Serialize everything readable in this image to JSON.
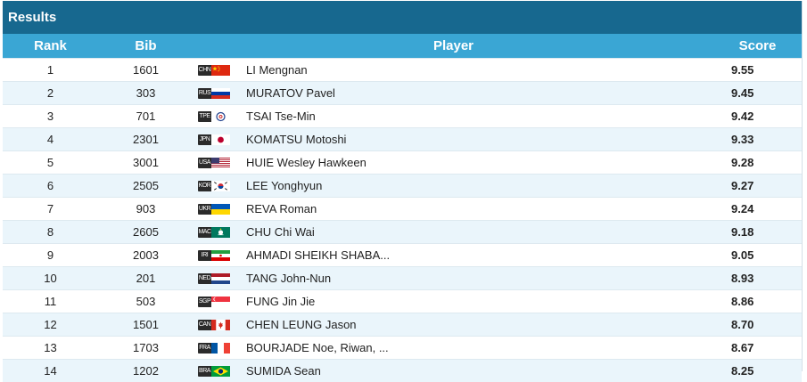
{
  "panel": {
    "title": "Results"
  },
  "columns": {
    "rank": "Rank",
    "bib": "Bib",
    "player": "Player",
    "score": "Score"
  },
  "rows": [
    {
      "rank": "1",
      "bib": "1601",
      "noc": "CHN",
      "flag_icon": "china-flag-icon",
      "name": "LI Mengnan",
      "score": "9.55"
    },
    {
      "rank": "2",
      "bib": "303",
      "noc": "RUS",
      "flag_icon": "russia-flag-icon",
      "name": "MURATOV Pavel",
      "score": "9.45"
    },
    {
      "rank": "3",
      "bib": "701",
      "noc": "TPE",
      "flag_icon": "chinese-taipei-flag-icon",
      "name": "TSAI Tse-Min",
      "score": "9.42"
    },
    {
      "rank": "4",
      "bib": "2301",
      "noc": "JPN",
      "flag_icon": "japan-flag-icon",
      "name": "KOMATSU Motoshi",
      "score": "9.33"
    },
    {
      "rank": "5",
      "bib": "3001",
      "noc": "USA",
      "flag_icon": "usa-flag-icon",
      "name": "HUIE Wesley Hawkeen",
      "score": "9.28"
    },
    {
      "rank": "6",
      "bib": "2505",
      "noc": "KOR",
      "flag_icon": "korea-flag-icon",
      "name": "LEE Yonghyun",
      "score": "9.27"
    },
    {
      "rank": "7",
      "bib": "903",
      "noc": "UKR",
      "flag_icon": "ukraine-flag-icon",
      "name": "REVA Roman",
      "score": "9.24"
    },
    {
      "rank": "8",
      "bib": "2605",
      "noc": "MAC",
      "flag_icon": "macau-flag-icon",
      "name": "CHU Chi Wai",
      "score": "9.18"
    },
    {
      "rank": "9",
      "bib": "2003",
      "noc": "IRI",
      "flag_icon": "iran-flag-icon",
      "name": "AHMADI SHEIKH SHABA...",
      "score": "9.05"
    },
    {
      "rank": "10",
      "bib": "201",
      "noc": "NED",
      "flag_icon": "netherlands-flag-icon",
      "name": "TANG John-Nun",
      "score": "8.93"
    },
    {
      "rank": "11",
      "bib": "503",
      "noc": "SGP",
      "flag_icon": "singapore-flag-icon",
      "name": "FUNG Jin Jie",
      "score": "8.86"
    },
    {
      "rank": "12",
      "bib": "1501",
      "noc": "CAN",
      "flag_icon": "canada-flag-icon",
      "name": "CHEN LEUNG Jason",
      "score": "8.70"
    },
    {
      "rank": "13",
      "bib": "1703",
      "noc": "FRA",
      "flag_icon": "france-flag-icon",
      "name": "BOURJADE Noe, Riwan, ...",
      "score": "8.67"
    },
    {
      "rank": "14",
      "bib": "1202",
      "noc": "BRA",
      "flag_icon": "brazil-flag-icon",
      "name": "SUMIDA Sean",
      "score": "8.25"
    }
  ],
  "colors": {
    "title_bar": "#17688f",
    "header": "#3aa6d4",
    "row_alt": "#eaf5fb"
  }
}
